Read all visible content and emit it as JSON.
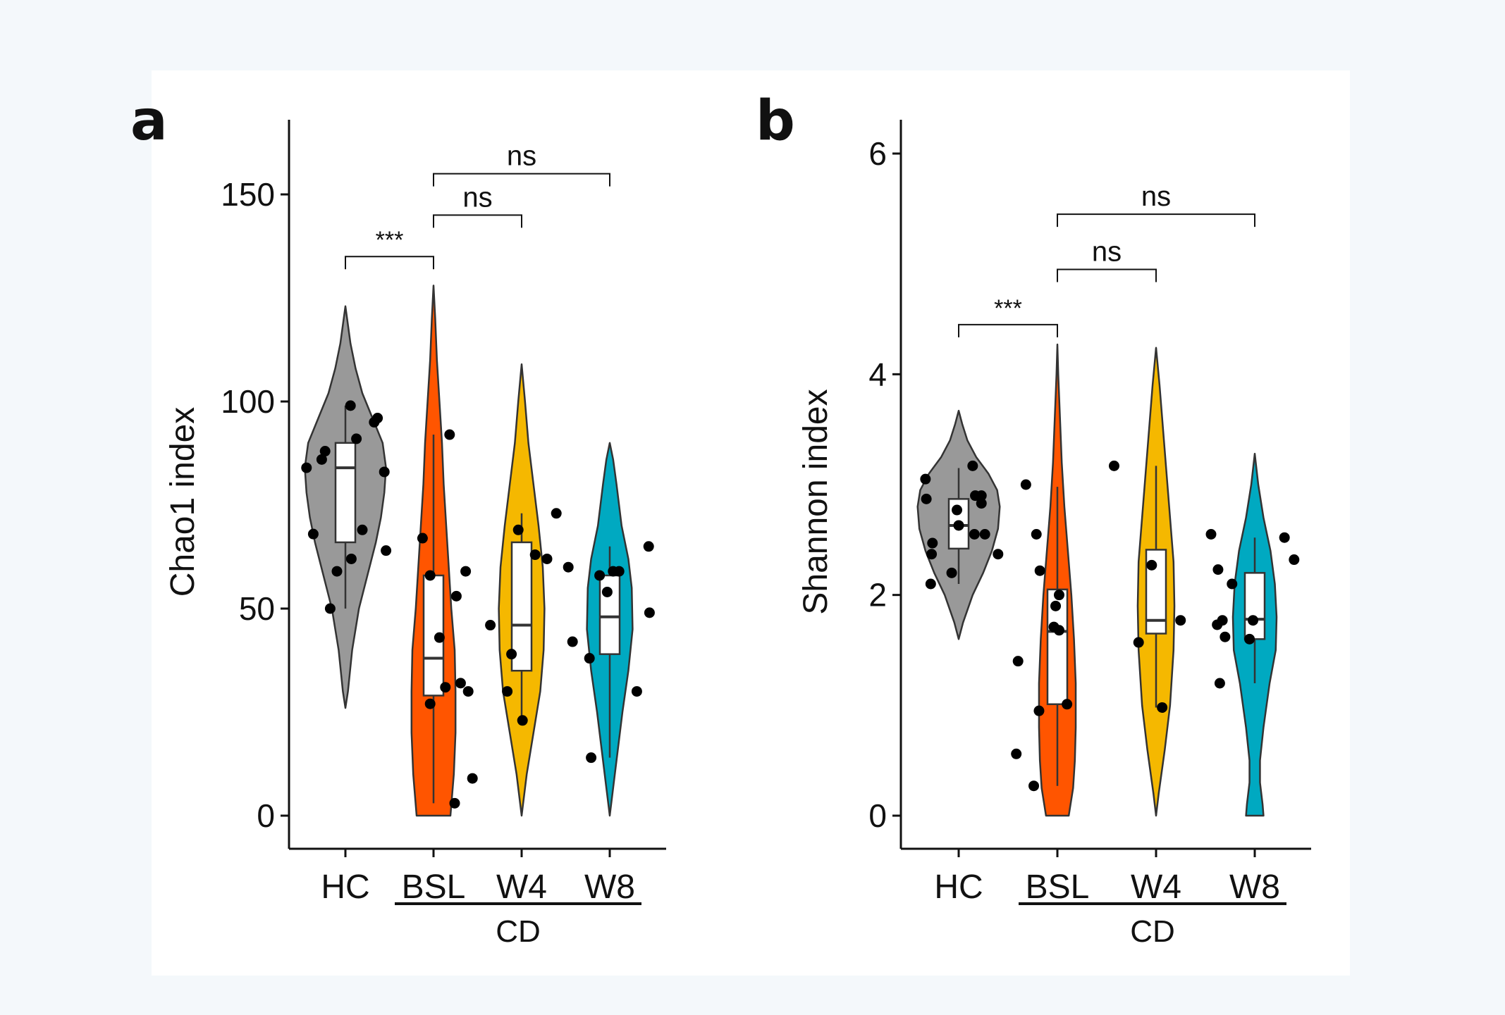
{
  "colors": {
    "HC": "#999999",
    "BSL": "#ff5500",
    "W4": "#f5b800",
    "W8": "#00a9c1",
    "outline": "#333333",
    "point": "#000000",
    "page_background": "#f4f8fb",
    "plot_background": "#ffffff"
  },
  "chart_data": [
    {
      "panel": "a",
      "type": "violin",
      "title": "",
      "xlabel": "",
      "ylabel": "Chao1 index",
      "ylim": [
        -7,
        168
      ],
      "yticks": [
        0,
        50,
        100,
        150
      ],
      "ytick_labels": [
        "0",
        "50",
        "100",
        "150"
      ],
      "categories": [
        "HC",
        "BSL",
        "W4",
        "W8"
      ],
      "group_bar_label": "CD",
      "group_bar_categories": [
        "BSL",
        "W4",
        "W8"
      ],
      "violins": [
        {
          "group": "HC",
          "profile": [
            [
              26,
              0
            ],
            [
              30,
              0.03
            ],
            [
              40,
              0.08
            ],
            [
              50,
              0.16
            ],
            [
              58,
              0.26
            ],
            [
              66,
              0.36
            ],
            [
              72,
              0.42
            ],
            [
              78,
              0.46
            ],
            [
              84,
              0.48
            ],
            [
              90,
              0.44
            ],
            [
              96,
              0.32
            ],
            [
              102,
              0.2
            ],
            [
              108,
              0.12
            ],
            [
              114,
              0.06
            ],
            [
              120,
              0.02
            ],
            [
              123,
              0
            ]
          ]
        },
        {
          "group": "BSL",
          "profile": [
            [
              0,
              0.2
            ],
            [
              10,
              0.24
            ],
            [
              20,
              0.26
            ],
            [
              30,
              0.26
            ],
            [
              40,
              0.25
            ],
            [
              50,
              0.21
            ],
            [
              60,
              0.18
            ],
            [
              70,
              0.15
            ],
            [
              80,
              0.12
            ],
            [
              90,
              0.1
            ],
            [
              100,
              0.07
            ],
            [
              110,
              0.04
            ],
            [
              120,
              0.02
            ],
            [
              128,
              0
            ]
          ]
        },
        {
          "group": "W4",
          "profile": [
            [
              0,
              0
            ],
            [
              5,
              0.03
            ],
            [
              10,
              0.06
            ],
            [
              20,
              0.14
            ],
            [
              30,
              0.22
            ],
            [
              40,
              0.26
            ],
            [
              50,
              0.27
            ],
            [
              60,
              0.25
            ],
            [
              70,
              0.2
            ],
            [
              80,
              0.14
            ],
            [
              90,
              0.08
            ],
            [
              100,
              0.04
            ],
            [
              109,
              0
            ]
          ]
        },
        {
          "group": "W8",
          "profile": [
            [
              0,
              0
            ],
            [
              5,
              0.03
            ],
            [
              15,
              0.09
            ],
            [
              25,
              0.15
            ],
            [
              35,
              0.22
            ],
            [
              45,
              0.27
            ],
            [
              55,
              0.26
            ],
            [
              62,
              0.22
            ],
            [
              70,
              0.14
            ],
            [
              80,
              0.08
            ],
            [
              86,
              0.04
            ],
            [
              90,
              0
            ]
          ]
        }
      ],
      "boxes": [
        {
          "group": "HC",
          "whisker_low": 50,
          "q1": 66,
          "median": 84,
          "q3": 90,
          "whisker_high": 99
        },
        {
          "group": "BSL",
          "whisker_low": 3,
          "q1": 29,
          "median": 38,
          "q3": 58,
          "whisker_high": 92
        },
        {
          "group": "W4",
          "whisker_low": 23,
          "q1": 35,
          "median": 46,
          "q3": 66,
          "whisker_high": 73
        },
        {
          "group": "W8",
          "whisker_low": 14,
          "q1": 39,
          "median": 48,
          "q3": 58,
          "whisker_high": 65
        }
      ],
      "points": [
        {
          "group": "HC",
          "values": [
            84,
            68,
            50,
            59,
            62,
            86,
            88,
            99,
            91,
            69,
            95,
            96,
            83,
            64
          ],
          "offsets": [
            -0.46,
            -0.38,
            -0.18,
            -0.1,
            0.07,
            -0.28,
            -0.24,
            0.06,
            0.13,
            0.2,
            0.34,
            0.38,
            0.46,
            0.48
          ]
        },
        {
          "group": "BSL",
          "values": [
            67,
            58,
            27,
            43,
            31,
            53,
            59,
            32,
            30,
            9,
            3,
            92
          ],
          "offsets": [
            -0.13,
            -0.04,
            -0.04,
            0.07,
            0.14,
            0.27,
            0.38,
            0.32,
            0.41,
            0.46,
            0.25,
            0.19
          ]
        },
        {
          "group": "W4",
          "values": [
            46,
            39,
            30,
            69,
            23,
            63,
            62,
            73
          ],
          "offsets": [
            -0.37,
            -0.12,
            -0.17,
            -0.04,
            0.01,
            0.16,
            0.3,
            0.41
          ]
        },
        {
          "group": "W8",
          "values": [
            42,
            60,
            38,
            58,
            59,
            54,
            14,
            49,
            59,
            65,
            30
          ],
          "offsets": [
            -0.44,
            -0.49,
            -0.24,
            -0.12,
            0.04,
            -0.03,
            -0.22,
            0.47,
            0.11,
            0.46,
            0.32
          ]
        }
      ],
      "significance": [
        {
          "from": "HC",
          "to": "BSL",
          "y": 135,
          "label": "***"
        },
        {
          "from": "BSL",
          "to": "W4",
          "y": 145,
          "label": "ns"
        },
        {
          "from": "BSL",
          "to": "W8",
          "y": 155,
          "label": "ns"
        }
      ]
    },
    {
      "panel": "b",
      "type": "violin",
      "title": "",
      "xlabel": "",
      "ylabel": "Shannon index",
      "ylim": [
        -0.3,
        6.3
      ],
      "yticks": [
        0,
        2,
        4,
        6
      ],
      "ytick_labels": [
        "0",
        "2",
        "4",
        "6"
      ],
      "categories": [
        "HC",
        "BSL",
        "W4",
        "W8"
      ],
      "group_bar_label": "CD",
      "group_bar_categories": [
        "BSL",
        "W4",
        "W8"
      ],
      "violins": [
        {
          "group": "HC",
          "profile": [
            [
              1.6,
              0
            ],
            [
              1.75,
              0.05
            ],
            [
              2,
              0.16
            ],
            [
              2.2,
              0.28
            ],
            [
              2.4,
              0.38
            ],
            [
              2.6,
              0.45
            ],
            [
              2.8,
              0.47
            ],
            [
              2.95,
              0.44
            ],
            [
              3.1,
              0.34
            ],
            [
              3.25,
              0.2
            ],
            [
              3.4,
              0.1
            ],
            [
              3.55,
              0.04
            ],
            [
              3.67,
              0
            ]
          ]
        },
        {
          "group": "BSL",
          "profile": [
            [
              0,
              0.13
            ],
            [
              0.25,
              0.18
            ],
            [
              0.5,
              0.2
            ],
            [
              0.8,
              0.21
            ],
            [
              1.2,
              0.21
            ],
            [
              1.6,
              0.19
            ],
            [
              2,
              0.16
            ],
            [
              2.4,
              0.12
            ],
            [
              2.8,
              0.08
            ],
            [
              3.2,
              0.05
            ],
            [
              3.6,
              0.03
            ],
            [
              4,
              0.01
            ],
            [
              4.27,
              0
            ]
          ]
        },
        {
          "group": "W4",
          "profile": [
            [
              0,
              0
            ],
            [
              0.2,
              0.03
            ],
            [
              0.6,
              0.1
            ],
            [
              1,
              0.16
            ],
            [
              1.5,
              0.2
            ],
            [
              1.9,
              0.21
            ],
            [
              2.3,
              0.2
            ],
            [
              2.7,
              0.16
            ],
            [
              3.1,
              0.12
            ],
            [
              3.5,
              0.08
            ],
            [
              3.9,
              0.04
            ],
            [
              4.24,
              0
            ]
          ]
        },
        {
          "group": "W8",
          "profile": [
            [
              0,
              0.1
            ],
            [
              0.1,
              0.09
            ],
            [
              0.3,
              0.06
            ],
            [
              0.5,
              0.06
            ],
            [
              0.8,
              0.1
            ],
            [
              1.2,
              0.17
            ],
            [
              1.5,
              0.24
            ],
            [
              1.8,
              0.25
            ],
            [
              2.1,
              0.23
            ],
            [
              2.4,
              0.18
            ],
            [
              2.7,
              0.1
            ],
            [
              3,
              0.04
            ],
            [
              3.28,
              0
            ]
          ]
        }
      ],
      "boxes": [
        {
          "group": "HC",
          "whisker_low": 2.1,
          "q1": 2.42,
          "median": 2.63,
          "q3": 2.87,
          "whisker_high": 3.15
        },
        {
          "group": "BSL",
          "whisker_low": 0.27,
          "q1": 1.01,
          "median": 1.67,
          "q3": 2.05,
          "whisker_high": 2.98
        },
        {
          "group": "W4",
          "whisker_low": 0.98,
          "q1": 1.65,
          "median": 1.77,
          "q3": 2.41,
          "whisker_high": 3.17
        },
        {
          "group": "W8",
          "whisker_low": 1.2,
          "q1": 1.6,
          "median": 1.78,
          "q3": 2.2,
          "whisker_high": 2.52
        }
      ],
      "points": [
        {
          "group": "HC",
          "values": [
            3.05,
            2.87,
            2.47,
            2.37,
            2.1,
            2.2,
            2.77,
            2.63,
            3.17,
            2.9,
            2.9,
            2.83,
            2.55,
            2.55,
            2.37
          ],
          "offsets": [
            -0.38,
            -0.37,
            -0.3,
            -0.31,
            -0.32,
            -0.08,
            -0.02,
            0,
            0.16,
            0.19,
            0.26,
            0.26,
            0.18,
            0.3,
            0.45
          ]
        },
        {
          "group": "BSL",
          "values": [
            3,
            2.55,
            2.22,
            1.4,
            0.95,
            0.56,
            0.27,
            1.71,
            1.9,
            2.0,
            1.68,
            1.01
          ],
          "offsets": [
            -0.36,
            -0.24,
            -0.2,
            -0.45,
            -0.21,
            -0.47,
            -0.27,
            -0.04,
            -0.02,
            0.02,
            0.02,
            0.11
          ]
        },
        {
          "group": "W4",
          "values": [
            3.17,
            1.57,
            2.27,
            0.98,
            1.77
          ],
          "offsets": [
            -0.48,
            -0.2,
            -0.05,
            0.07,
            0.28
          ]
        },
        {
          "group": "W8",
          "values": [
            2.55,
            2.23,
            1.73,
            1.77,
            1.62,
            1.2,
            2.1,
            1.6,
            1.77,
            2.52,
            2.32
          ],
          "offsets": [
            -0.5,
            -0.42,
            -0.43,
            -0.37,
            -0.34,
            -0.4,
            -0.26,
            -0.06,
            -0.02,
            0.34,
            0.45
          ]
        }
      ],
      "significance": [
        {
          "from": "HC",
          "to": "BSL",
          "y": 4.45,
          "label": "***"
        },
        {
          "from": "BSL",
          "to": "W4",
          "y": 4.95,
          "label": "ns"
        },
        {
          "from": "BSL",
          "to": "W8",
          "y": 5.45,
          "label": "ns"
        }
      ]
    }
  ]
}
